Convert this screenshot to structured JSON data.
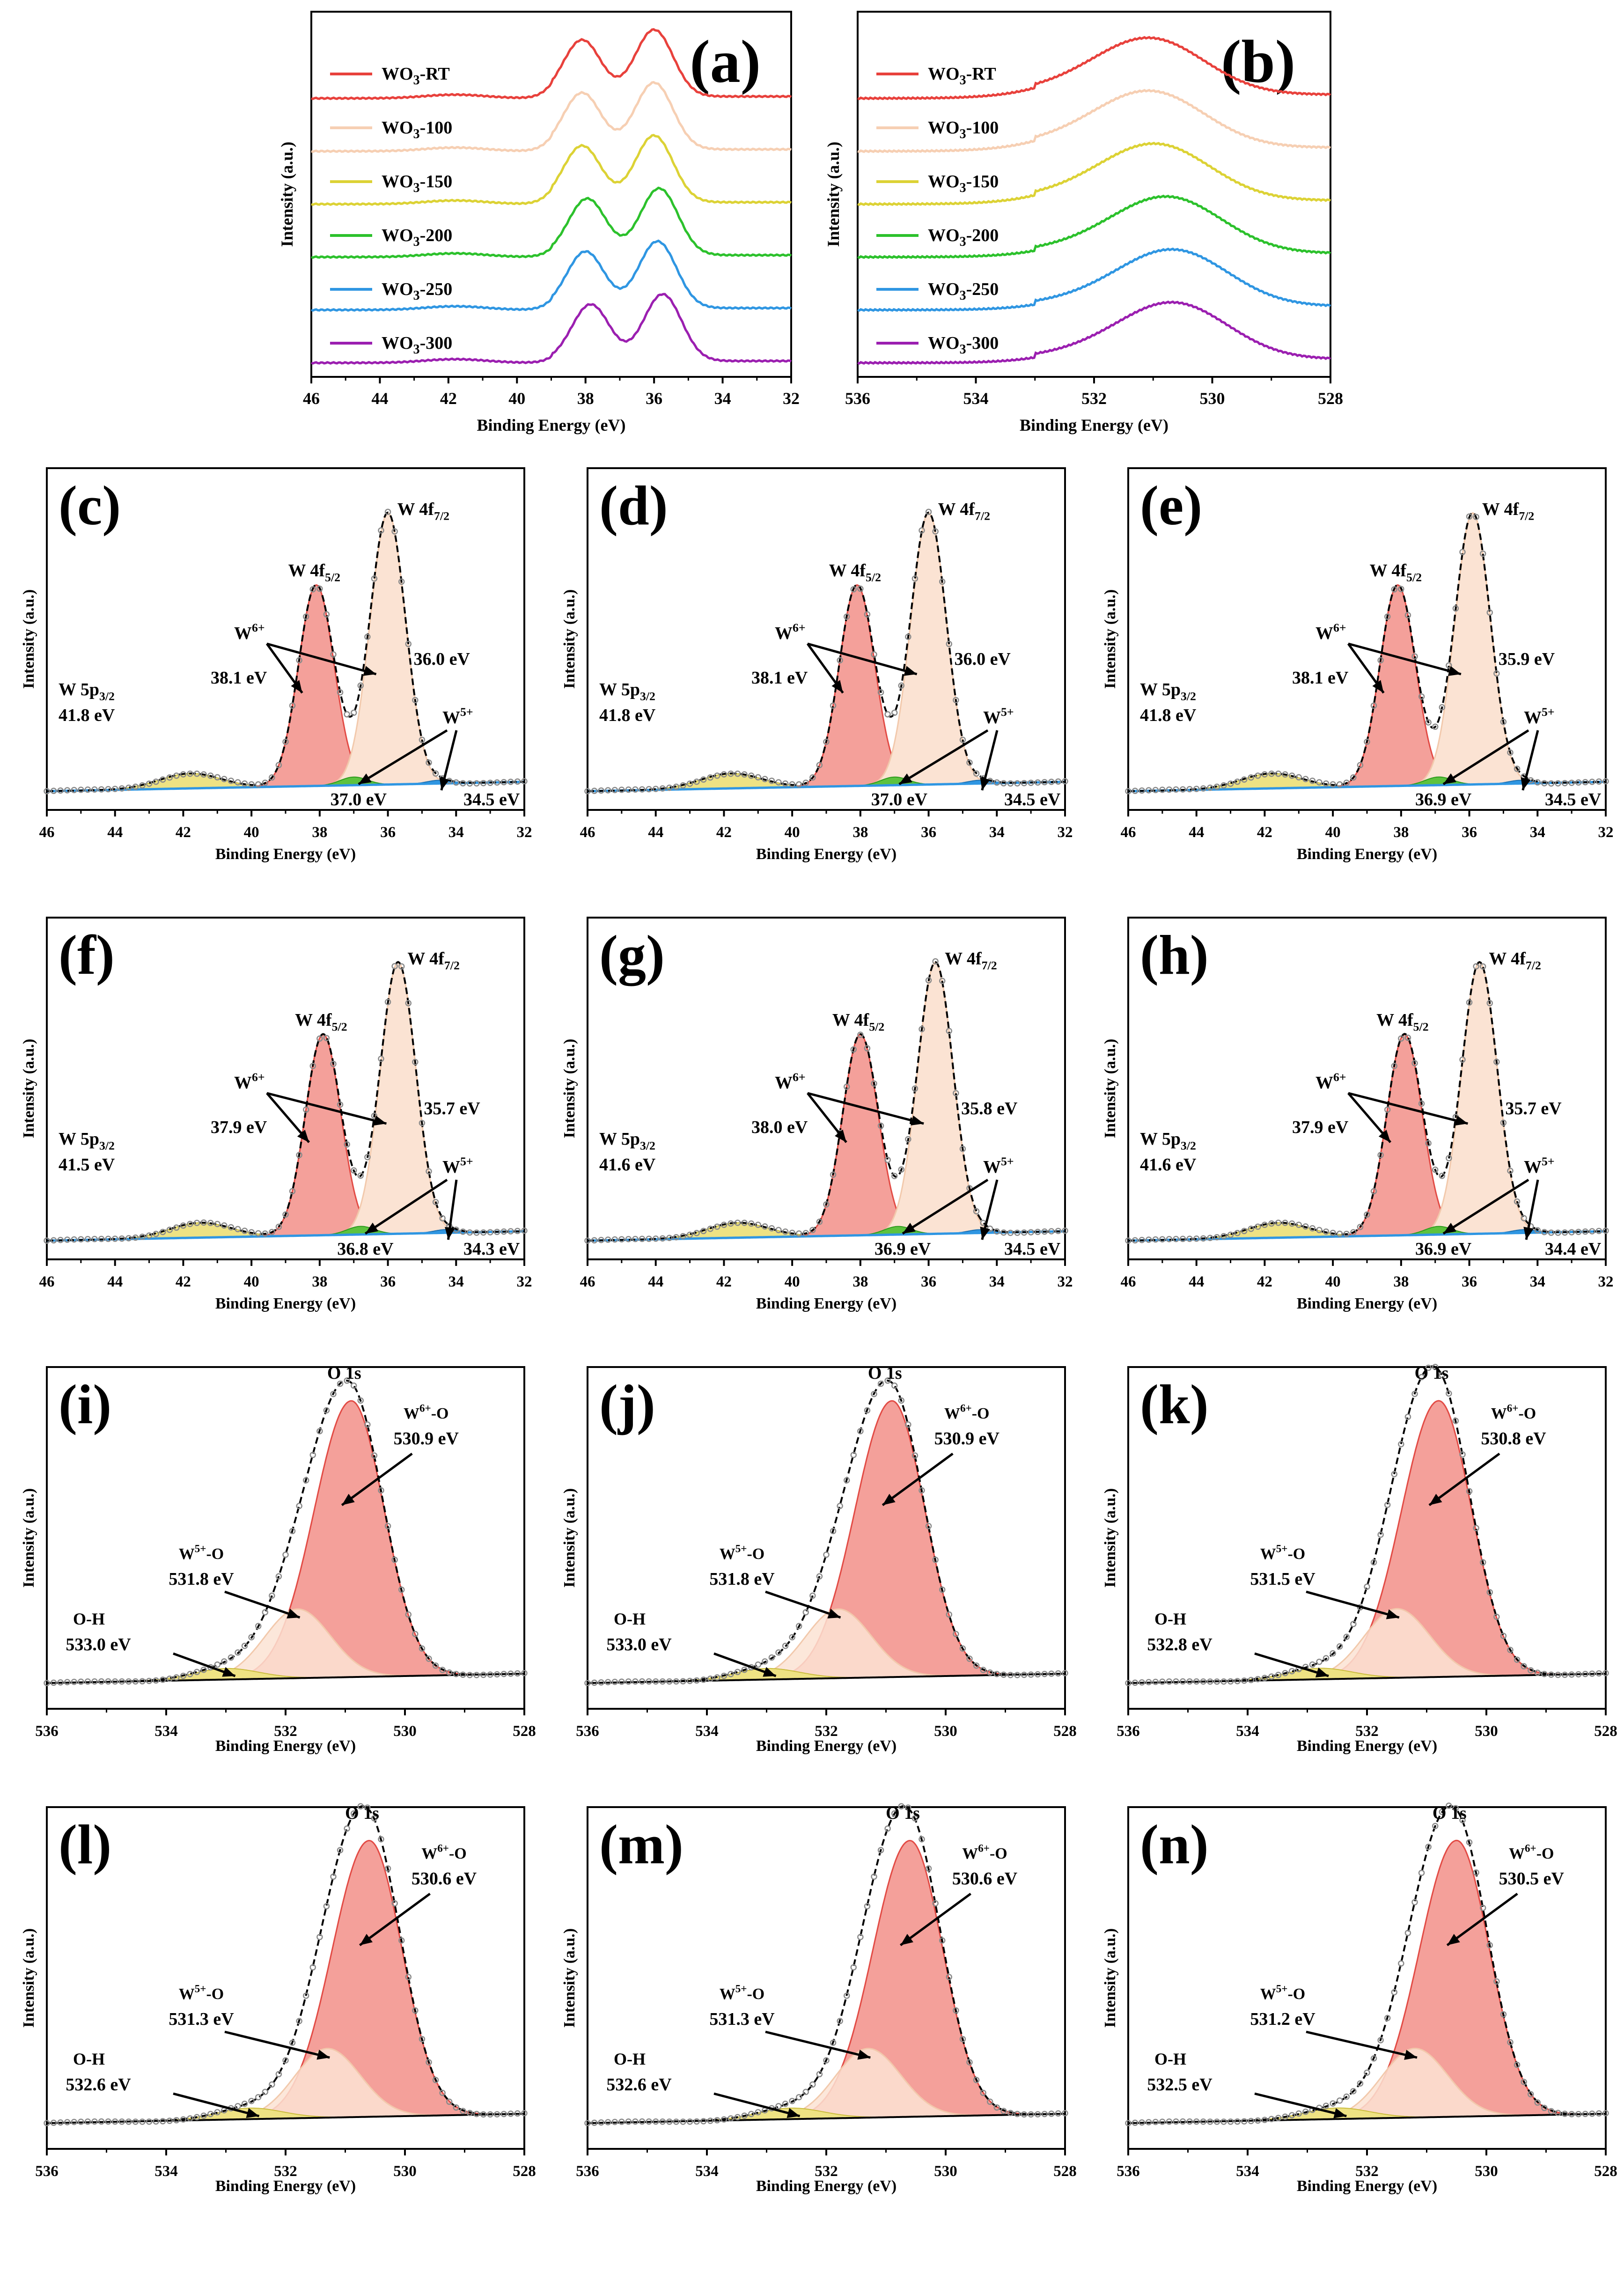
{
  "chart_data": [
    {
      "id": "a",
      "type": "line",
      "panel_label": "(a)",
      "xlabel": "Binding Energy (eV)",
      "ylabel": "Intensity (a.u.)",
      "xlim": [
        46,
        32
      ],
      "xticks": [
        46,
        44,
        42,
        40,
        38,
        36,
        34,
        32
      ],
      "x_reversed": true,
      "legend_position": "top-left",
      "peaks": [
        38.1,
        36.0
      ],
      "series": [
        {
          "name": "WO3-RT",
          "sub_base": "WO",
          "sub_index": "3",
          "sub_rest": "-RT",
          "color": "#e8413c"
        },
        {
          "name": "WO3-100",
          "sub_base": "WO",
          "sub_index": "3",
          "sub_rest": "-100",
          "color": "#f6cfb3"
        },
        {
          "name": "WO3-150",
          "sub_base": "WO",
          "sub_index": "3",
          "sub_rest": "-150",
          "color": "#dcd235"
        },
        {
          "name": "WO3-200",
          "sub_base": "WO",
          "sub_index": "3",
          "sub_rest": "-200",
          "color": "#2cc12c"
        },
        {
          "name": "WO3-250",
          "sub_base": "WO",
          "sub_index": "3",
          "sub_rest": "-250",
          "color": "#2f96e2"
        },
        {
          "name": "WO3-300",
          "sub_base": "WO",
          "sub_index": "3",
          "sub_rest": "-300",
          "color": "#9b1fb0"
        }
      ]
    },
    {
      "id": "b",
      "type": "line",
      "panel_label": "(b)",
      "xlabel": "Binding Energy (eV)",
      "ylabel": "Intensity (a.u.)",
      "xlim": [
        536,
        528
      ],
      "xticks": [
        536,
        534,
        532,
        530,
        528
      ],
      "x_reversed": true,
      "legend_position": "top-left",
      "peak_centers": [
        531.0,
        531.0,
        530.9,
        530.7,
        530.6,
        530.6
      ],
      "series": [
        {
          "name": "WO3-RT",
          "sub_base": "WO",
          "sub_index": "3",
          "sub_rest": "-RT",
          "color": "#e8413c"
        },
        {
          "name": "WO3-100",
          "sub_base": "WO",
          "sub_index": "3",
          "sub_rest": "-100",
          "color": "#f6cfb3"
        },
        {
          "name": "WO3-150",
          "sub_base": "WO",
          "sub_index": "3",
          "sub_rest": "-150",
          "color": "#dcd235"
        },
        {
          "name": "WO3-200",
          "sub_base": "WO",
          "sub_index": "3",
          "sub_rest": "-200",
          "color": "#2cc12c"
        },
        {
          "name": "WO3-250",
          "sub_base": "WO",
          "sub_index": "3",
          "sub_rest": "-250",
          "color": "#2f96e2"
        },
        {
          "name": "WO3-300",
          "sub_base": "WO",
          "sub_index": "3",
          "sub_rest": "-300",
          "color": "#9b1fb0"
        }
      ]
    },
    {
      "id": "c",
      "type": "area",
      "panel_label": "(c)",
      "region": "W4f",
      "xlabel": "Binding Energy (eV)",
      "ylabel": "Intensity (a.u.)",
      "xlim": [
        46,
        32
      ],
      "xticks": [
        46,
        44,
        42,
        40,
        38,
        36,
        34,
        32
      ],
      "x_reversed": true,
      "peaks": {
        "w4f52": 38.1,
        "w4f72": 36.0,
        "w5p": 41.8,
        "w5a": 37.0,
        "w5b": 34.5
      },
      "labels": {
        "w4f52_label": "W 4f5/2",
        "w4f72_label": "W 4f7/2",
        "w6_label": "W6+",
        "w5_label": "W5+",
        "w5p_label": "W 5p3/2",
        "e52": "38.1 eV",
        "e72": "36.0 eV",
        "e5p": "41.8 eV",
        "e5a": "37.0 eV",
        "e5b": "34.5 eV"
      }
    },
    {
      "id": "d",
      "type": "area",
      "panel_label": "(d)",
      "region": "W4f",
      "xlabel": "Binding Energy (eV)",
      "ylabel": "Intensity (a.u.)",
      "xlim": [
        46,
        32
      ],
      "xticks": [
        46,
        44,
        42,
        40,
        38,
        36,
        34,
        32
      ],
      "x_reversed": true,
      "peaks": {
        "w4f52": 38.1,
        "w4f72": 36.0,
        "w5p": 41.8,
        "w5a": 37.0,
        "w5b": 34.5
      },
      "labels": {
        "w4f52_label": "W 4f5/2",
        "w4f72_label": "W 4f7/2",
        "w6_label": "W6+",
        "w5_label": "W5+",
        "w5p_label": "W 5p3/2",
        "e52": "38.1 eV",
        "e72": "36.0 eV",
        "e5p": "41.8 eV",
        "e5a": "37.0 eV",
        "e5b": "34.5 eV"
      }
    },
    {
      "id": "e",
      "type": "area",
      "panel_label": "(e)",
      "region": "W4f",
      "xlabel": "Binding Energy (eV)",
      "ylabel": "Intensity (a.u.)",
      "xlim": [
        46,
        32
      ],
      "xticks": [
        46,
        44,
        42,
        40,
        38,
        36,
        34,
        32
      ],
      "x_reversed": true,
      "peaks": {
        "w4f52": 38.1,
        "w4f72": 35.9,
        "w5p": 41.8,
        "w5a": 36.9,
        "w5b": 34.5
      },
      "labels": {
        "w4f52_label": "W 4f5/2",
        "w4f72_label": "W 4f7/2",
        "w6_label": "W6+",
        "w5_label": "W5+",
        "w5p_label": "W 5p3/2",
        "e52": "38.1 eV",
        "e72": "35.9 eV",
        "e5p": "41.8 eV",
        "e5a": "36.9 eV",
        "e5b": "34.5 eV"
      }
    },
    {
      "id": "f",
      "type": "area",
      "panel_label": "(f)",
      "region": "W4f",
      "xlabel": "Binding Energy (eV)",
      "ylabel": "Intensity (a.u.)",
      "xlim": [
        46,
        32
      ],
      "xticks": [
        46,
        44,
        42,
        40,
        38,
        36,
        34,
        32
      ],
      "x_reversed": true,
      "peaks": {
        "w4f52": 37.9,
        "w4f72": 35.7,
        "w5p": 41.5,
        "w5a": 36.8,
        "w5b": 34.3
      },
      "labels": {
        "w4f52_label": "W 4f5/2",
        "w4f72_label": "W 4f7/2",
        "w6_label": "W6+",
        "w5_label": "W5+",
        "w5p_label": "W 5p3/2",
        "e52": "37.9 eV",
        "e72": "35.7 eV",
        "e5p": "41.5 eV",
        "e5a": "36.8 eV",
        "e5b": "34.3 eV"
      }
    },
    {
      "id": "g",
      "type": "area",
      "panel_label": "(g)",
      "region": "W4f",
      "xlabel": "Binding Energy (eV)",
      "ylabel": "Intensity (a.u.)",
      "xlim": [
        46,
        32
      ],
      "xticks": [
        46,
        44,
        42,
        40,
        38,
        36,
        34,
        32
      ],
      "x_reversed": true,
      "peaks": {
        "w4f52": 38.0,
        "w4f72": 35.8,
        "w5p": 41.6,
        "w5a": 36.9,
        "w5b": 34.5
      },
      "labels": {
        "w4f52_label": "W 4f5/2",
        "w4f72_label": "W 4f7/2",
        "w6_label": "W6+",
        "w5_label": "W5+",
        "w5p_label": "W 5p3/2",
        "e52": "38.0 eV",
        "e72": "35.8 eV",
        "e5p": "41.6 eV",
        "e5a": "36.9 eV",
        "e5b": "34.5 eV"
      }
    },
    {
      "id": "h",
      "type": "area",
      "panel_label": "(h)",
      "region": "W4f",
      "xlabel": "Binding Energy (eV)",
      "ylabel": "Intensity (a.u.)",
      "xlim": [
        46,
        32
      ],
      "xticks": [
        46,
        44,
        42,
        40,
        38,
        36,
        34,
        32
      ],
      "x_reversed": true,
      "peaks": {
        "w4f52": 37.9,
        "w4f72": 35.7,
        "w5p": 41.6,
        "w5a": 36.9,
        "w5b": 34.4
      },
      "labels": {
        "w4f52_label": "W 4f5/2",
        "w4f72_label": "W 4f7/2",
        "w6_label": "W6+",
        "w5_label": "W5+",
        "w5p_label": "W 5p3/2",
        "e52": "37.9 eV",
        "e72": "35.7 eV",
        "e5p": "41.6 eV",
        "e5a": "36.9 eV",
        "e5b": "34.4 eV"
      }
    },
    {
      "id": "i",
      "type": "area",
      "panel_label": "(i)",
      "region": "O1s",
      "xlabel": "Binding Energy (eV)",
      "ylabel": "Intensity (a.u.)",
      "xlim": [
        536,
        528
      ],
      "xticks": [
        536,
        534,
        532,
        530,
        528
      ],
      "x_reversed": true,
      "peaks": {
        "w6o": 530.9,
        "w5o": 531.8,
        "oh": 533.0
      },
      "labels": {
        "title": "O 1s",
        "w6o_label": "W6+-O",
        "w5o_label": "W5+-O",
        "oh_label": "O-H",
        "e6": "530.9 eV",
        "e5": "531.8 eV",
        "eoh": "533.0 eV"
      }
    },
    {
      "id": "j",
      "type": "area",
      "panel_label": "(j)",
      "region": "O1s",
      "xlabel": "Binding Energy (eV)",
      "ylabel": "Intensity (a.u.)",
      "xlim": [
        536,
        528
      ],
      "xticks": [
        536,
        534,
        532,
        530,
        528
      ],
      "x_reversed": true,
      "peaks": {
        "w6o": 530.9,
        "w5o": 531.8,
        "oh": 533.0
      },
      "labels": {
        "title": "O 1s",
        "w6o_label": "W6+-O",
        "w5o_label": "W5+-O",
        "oh_label": "O-H",
        "e6": "530.9 eV",
        "e5": "531.8 eV",
        "eoh": "533.0 eV"
      }
    },
    {
      "id": "k",
      "type": "area",
      "panel_label": "(k)",
      "region": "O1s",
      "xlabel": "Binding Energy (eV)",
      "ylabel": "Intensity (a.u.)",
      "xlim": [
        536,
        528
      ],
      "xticks": [
        536,
        534,
        532,
        530,
        528
      ],
      "x_reversed": true,
      "peaks": {
        "w6o": 530.8,
        "w5o": 531.5,
        "oh": 532.8
      },
      "labels": {
        "title": "O 1s",
        "w6o_label": "W6+-O",
        "w5o_label": "W5+-O",
        "oh_label": "O-H",
        "e6": "530.8 eV",
        "e5": "531.5 eV",
        "eoh": "532.8 eV"
      }
    },
    {
      "id": "l",
      "type": "area",
      "panel_label": "(l)",
      "region": "O1s",
      "xlabel": "Binding Energy (eV)",
      "ylabel": "Intensity (a.u.)",
      "xlim": [
        536,
        528
      ],
      "xticks": [
        536,
        534,
        532,
        530,
        528
      ],
      "x_reversed": true,
      "peaks": {
        "w6o": 530.6,
        "w5o": 531.3,
        "oh": 532.6
      },
      "labels": {
        "title": "O 1s",
        "w6o_label": "W6+-O",
        "w5o_label": "W5+-O",
        "oh_label": "O-H",
        "e6": "530.6 eV",
        "e5": "531.3 eV",
        "eoh": "532.6 eV"
      }
    },
    {
      "id": "m",
      "type": "area",
      "panel_label": "(m)",
      "region": "O1s",
      "xlabel": "Binding Energy (eV)",
      "ylabel": "Intensity (a.u.)",
      "xlim": [
        536,
        528
      ],
      "xticks": [
        536,
        534,
        532,
        530,
        528
      ],
      "x_reversed": true,
      "peaks": {
        "w6o": 530.6,
        "w5o": 531.3,
        "oh": 532.6
      },
      "labels": {
        "title": "O 1s",
        "w6o_label": "W6+-O",
        "w5o_label": "W5+-O",
        "oh_label": "O-H",
        "e6": "530.6 eV",
        "e5": "531.3 eV",
        "eoh": "532.6 eV"
      }
    },
    {
      "id": "n",
      "type": "area",
      "panel_label": "(n)",
      "region": "O1s",
      "xlabel": "Binding Energy (eV)",
      "ylabel": "Intensity (a.u.)",
      "xlim": [
        536,
        528
      ],
      "xticks": [
        536,
        534,
        532,
        530,
        528
      ],
      "x_reversed": true,
      "peaks": {
        "w6o": 530.5,
        "w5o": 531.2,
        "oh": 532.5
      },
      "labels": {
        "title": "O 1s",
        "w6o_label": "W6+-O",
        "w5o_label": "W5+-O",
        "oh_label": "O-H",
        "e6": "530.5 eV",
        "e5": "531.2 eV",
        "eoh": "532.5 eV"
      }
    }
  ],
  "colors": {
    "w6_red": "#f4a09a",
    "w6_red_stroke": "#e24b45",
    "w6_peach": "#fbe3d3",
    "w6_peach_stroke": "#f2c9ac",
    "w5_green": "#5dc23e",
    "w5p_yellow": "#eee283",
    "bg_blue": "#2f96e2",
    "envelope": "#000000",
    "raw": "#8a8a8a"
  }
}
